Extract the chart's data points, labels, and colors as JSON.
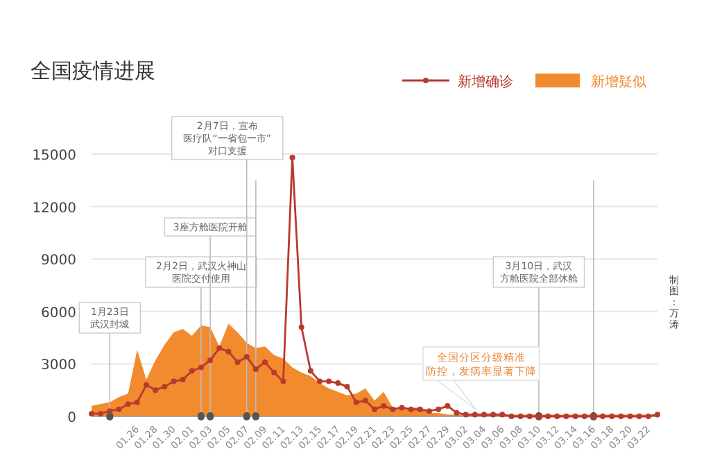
{
  "chart_data": {
    "type": "line",
    "title": "全国疫情进展",
    "x": [
      "--01-21",
      "--01-22",
      "--01-23",
      "--01-24",
      "--01-25",
      "--01-26",
      "--01-27",
      "--01-28",
      "--01-29",
      "--01-30",
      "--01-31",
      "--02-01",
      "--02-02",
      "--02-03",
      "--02-04",
      "--02-05",
      "--02-06",
      "--02-07",
      "--02-08",
      "--02-09",
      "--02-10",
      "--02-11",
      "--02-12",
      "--02-13",
      "--02-14",
      "--02-15",
      "--02-16",
      "--02-17",
      "--02-18",
      "--02-19",
      "--02-20",
      "--02-21",
      "--02-22",
      "--02-23",
      "--02-24",
      "--02-25",
      "--02-26",
      "--02-27",
      "--02-28",
      "--02-29",
      "--03-01",
      "--03-02",
      "--03-03",
      "--03-04",
      "--03-05",
      "--03-06",
      "--03-07",
      "--03-08",
      "--03-09",
      "--03-10",
      "--03-11",
      "--03-12",
      "--03-13",
      "--03-14",
      "--03-15",
      "--03-16",
      "--03-17",
      "--03-18",
      "--03-19",
      "--03-20",
      "--03-21",
      "--03-22",
      "--03-23"
    ],
    "series": [
      {
        "name": "新增疑似",
        "type": "area",
        "color": "#f28a2e",
        "values": [
          600,
          700,
          800,
          1100,
          1300,
          3800,
          2100,
          3200,
          4100,
          4800,
          5000,
          4600,
          5200,
          5100,
          4000,
          5300,
          4800,
          4200,
          3900,
          4000,
          3500,
          3300,
          2800,
          2500,
          2300,
          1900,
          1600,
          1400,
          1200,
          1300,
          1600,
          900,
          1400,
          500,
          400,
          500,
          500,
          200,
          200,
          100,
          100,
          100,
          100,
          100,
          100,
          100,
          100,
          100,
          100,
          100,
          100,
          100,
          100,
          100,
          100,
          100,
          100,
          100,
          100,
          100,
          100,
          100,
          100
        ]
      },
      {
        "name": "新增确诊",
        "marker": "circle",
        "color": "#b83a2e",
        "values": [
          150,
          150,
          300,
          400,
          700,
          800,
          1800,
          1500,
          1700,
          2000,
          2100,
          2600,
          2800,
          3200,
          3900,
          3700,
          3100,
          3400,
          2700,
          3100,
          2500,
          2000,
          14800,
          5100,
          2600,
          2000,
          2000,
          1900,
          1700,
          800,
          900,
          400,
          600,
          400,
          500,
          400,
          400,
          300,
          400,
          600,
          200,
          100,
          100,
          100,
          100,
          100,
          0,
          0,
          0,
          0,
          0,
          0,
          0,
          0,
          0,
          0,
          0,
          0,
          0,
          0,
          0,
          0,
          100
        ]
      }
    ],
    "xlim": [
      "--01-21",
      "--03-23"
    ],
    "xticks": [
      {
        "value": "--01-26",
        "label": "01.26"
      },
      {
        "value": "--01-28",
        "label": "01.28"
      },
      {
        "value": "--01-30",
        "label": "01.30"
      },
      {
        "value": "--02-01",
        "label": "02.01"
      },
      {
        "value": "--02-03",
        "label": "02.03"
      },
      {
        "value": "--02-05",
        "label": "02.05"
      },
      {
        "value": "--02-07",
        "label": "02.07"
      },
      {
        "value": "--02-09",
        "label": "02.09"
      },
      {
        "value": "--02-11",
        "label": "02.11"
      },
      {
        "value": "--02-13",
        "label": "02.13"
      },
      {
        "value": "--02-15",
        "label": "02.15"
      },
      {
        "value": "--02-17",
        "label": "02.17"
      },
      {
        "value": "--02-19",
        "label": "02.19"
      },
      {
        "value": "--02-21",
        "label": "02.21"
      },
      {
        "value": "--02-23",
        "label": "02.23"
      },
      {
        "value": "--02-25",
        "label": "02.25"
      },
      {
        "value": "--02-27",
        "label": "02.27"
      },
      {
        "value": "--02-29",
        "label": "02.29"
      },
      {
        "value": "--03-02",
        "label": "03.02"
      },
      {
        "value": "--03-04",
        "label": "03.04"
      },
      {
        "value": "--03-06",
        "label": "03.06"
      },
      {
        "value": "--03-08",
        "label": "03.08"
      },
      {
        "value": "--03-10",
        "label": "03.10"
      },
      {
        "value": "--03-12",
        "label": "03.12"
      },
      {
        "value": "--03-14",
        "label": "03.14"
      },
      {
        "value": "--03-16",
        "label": "03.16"
      },
      {
        "value": "--03-18",
        "label": "03.18"
      },
      {
        "value": "--03-20",
        "label": "03.20"
      },
      {
        "value": "--03-22",
        "label": "03.22"
      }
    ],
    "ylim": [
      0,
      15000
    ],
    "yticks": [
      0,
      3000,
      6000,
      9000,
      12000,
      15000
    ],
    "grid": "y",
    "legend": "top right",
    "ref_lines": [
      {
        "axis": "x",
        "value": "--01-23",
        "label": "1月23日武汉封城"
      },
      {
        "axis": "x",
        "value": "--02-02",
        "label": "2月2日，武汉火神山医院交付使用"
      },
      {
        "axis": "x",
        "value": "--02-03",
        "label": "3座方舱医院开舱"
      },
      {
        "axis": "x",
        "value": "--02-07",
        "label": "2月7日，宣布医疗队“一省包一市”对口支援"
      },
      {
        "axis": "x",
        "value": "--02-08",
        "label": null
      },
      {
        "axis": "x",
        "value": "--03-10",
        "label": "3月10日，武汉方舱医院全部休舱"
      },
      {
        "axis": "x",
        "value": "--03-16",
        "label": null
      }
    ],
    "annotations": [
      "全国分区分级精准防控，发病率显著下降",
      "制图：万涛"
    ]
  }
}
